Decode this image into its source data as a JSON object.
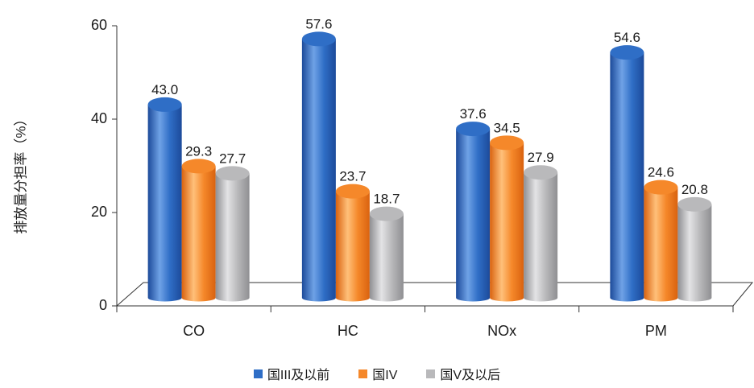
{
  "chart_data": {
    "type": "bar",
    "categories": [
      "CO",
      "HC",
      "NOx",
      "PM"
    ],
    "series": [
      {
        "name": "国III及以前",
        "values": [
          43.0,
          57.6,
          37.6,
          54.6
        ],
        "color": "#2f6ec6",
        "color_light": "#6fa2e6",
        "color_dark": "#1c4a9a"
      },
      {
        "name": "国IV",
        "values": [
          29.3,
          23.7,
          34.5,
          24.6
        ],
        "color": "#f5882a",
        "color_light": "#ffc07a",
        "color_dark": "#d9620f"
      },
      {
        "name": "国V及以后",
        "values": [
          27.7,
          18.7,
          27.9,
          20.8
        ],
        "color": "#b9b9bb",
        "color_light": "#e3e3e5",
        "color_dark": "#8f8f92"
      }
    ],
    "value_labels": [
      [
        "43.0",
        "57.6",
        "37.6",
        "54.6"
      ],
      [
        "29.3",
        "23.7",
        "34.5",
        "24.6"
      ],
      [
        "27.7",
        "18.7",
        "27.9",
        "20.8"
      ]
    ],
    "yticks": [
      "0",
      "20",
      "40",
      "60"
    ],
    "ylabel": "排放量分担率（%）",
    "xlabel": "",
    "ylim": [
      0,
      60
    ],
    "grid": false,
    "legend_position": "bottom"
  }
}
